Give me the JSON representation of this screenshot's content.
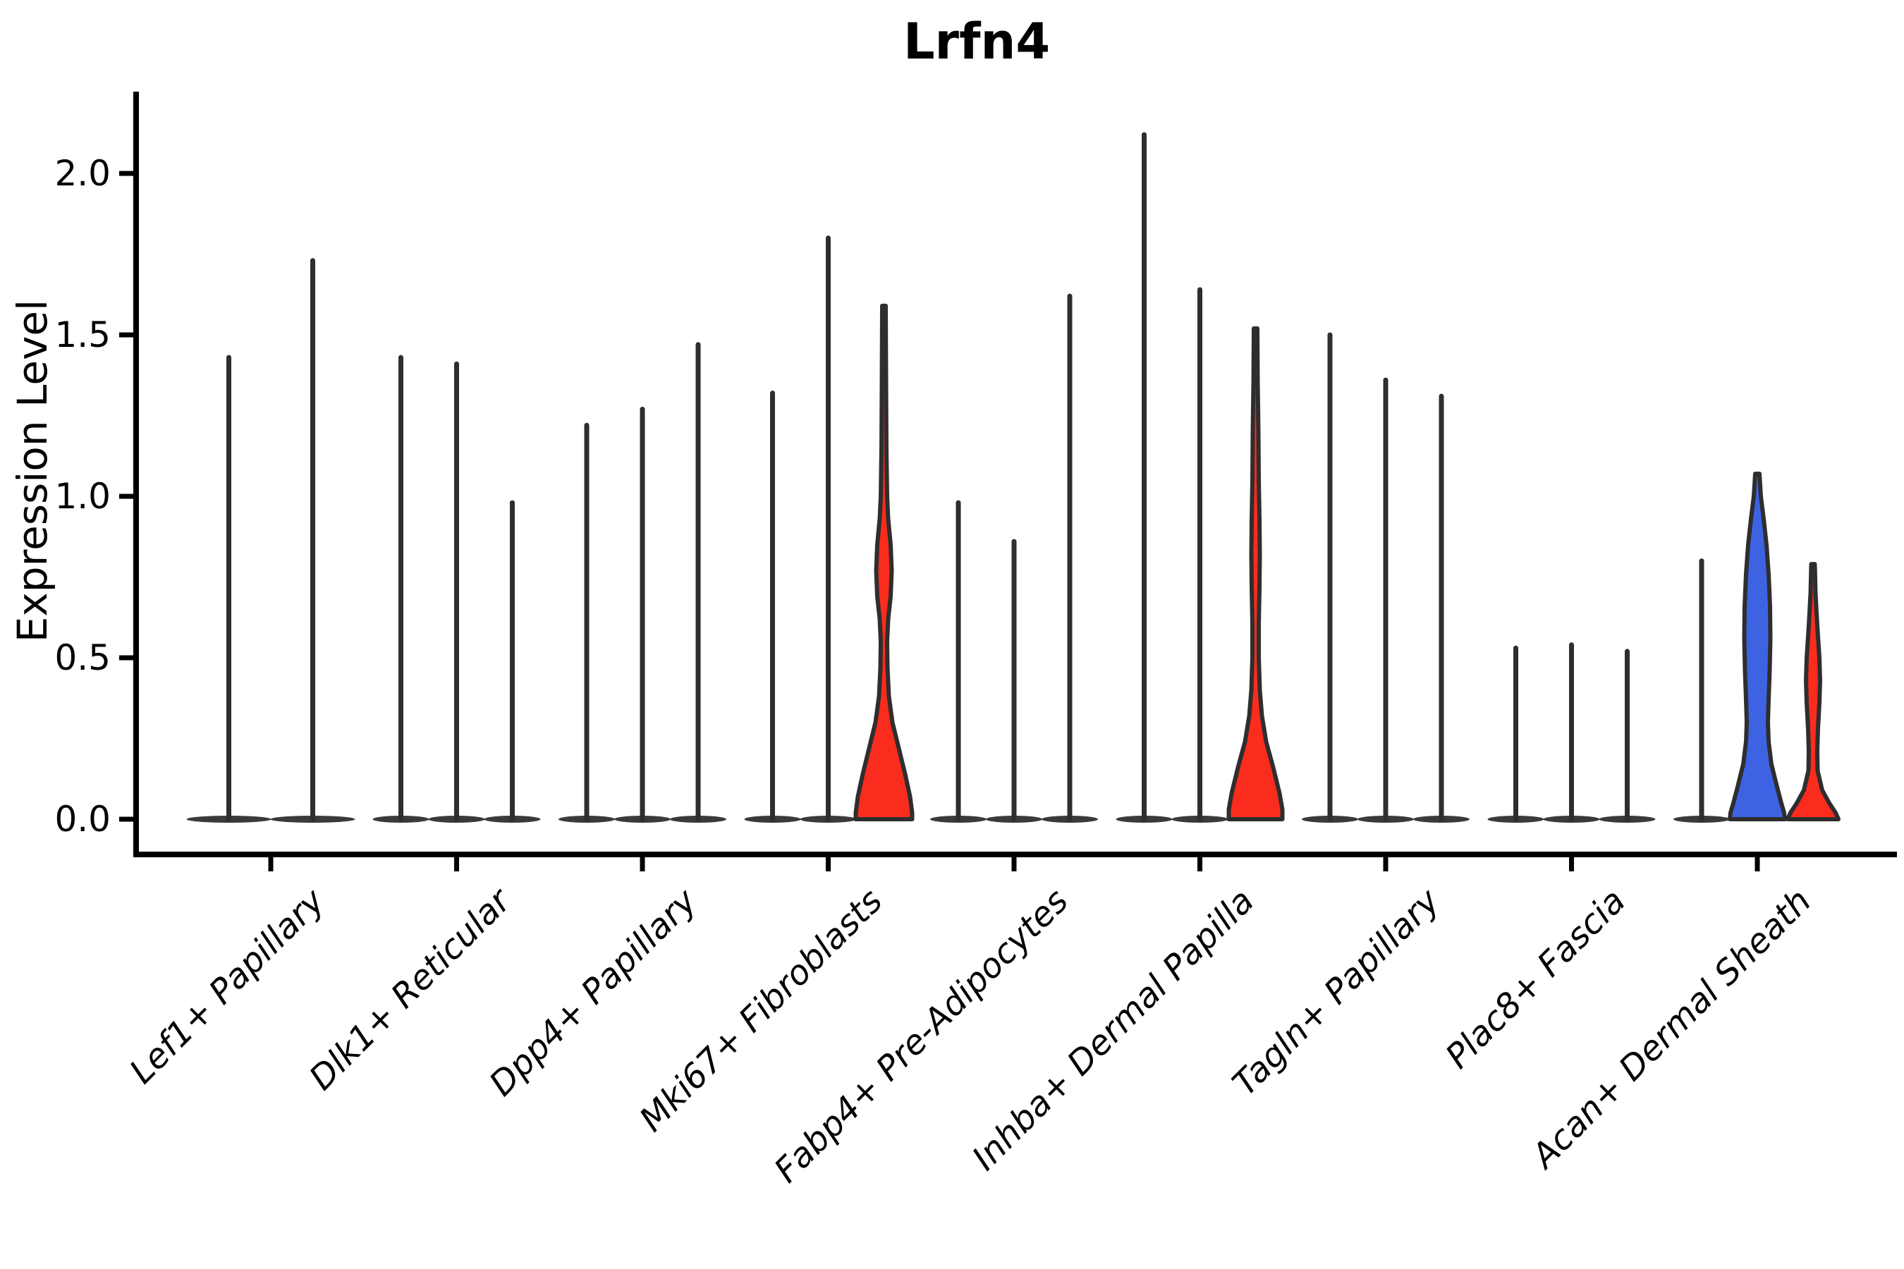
{
  "chart_data": {
    "type": "violin",
    "title": "Lrfn4",
    "ylabel": "Expression Level",
    "xlabel": "",
    "ylim": [
      -0.1,
      2.25
    ],
    "yticks": [
      0.0,
      0.5,
      1.0,
      1.5,
      2.0
    ],
    "ytick_labels": [
      "0.0",
      "0.5",
      "1.0",
      "1.5",
      "2.0"
    ],
    "grid": false,
    "legend": "none",
    "categories": [
      "Lef1+ Papillary",
      "Dlk1+ Reticular",
      "Dpp4+ Papillary",
      "Mki67+ Fibroblasts",
      "Fabp4+ Pre-Adipocytes",
      "Inhba+ Dermal Papilla",
      "Tagln+ Papillary",
      "Plac8+ Fascia",
      "Acan+ Dermal Sheath"
    ],
    "groups": [
      {
        "category": "Lef1+ Papillary",
        "violins": [
          {
            "kind": "spike",
            "value": 1.43
          },
          {
            "kind": "spike",
            "value": 1.73
          }
        ]
      },
      {
        "category": "Dlk1+ Reticular",
        "violins": [
          {
            "kind": "spike",
            "value": 1.43
          },
          {
            "kind": "spike",
            "value": 1.41
          },
          {
            "kind": "spike",
            "value": 0.98
          }
        ]
      },
      {
        "category": "Dpp4+ Papillary",
        "violins": [
          {
            "kind": "spike",
            "value": 1.22
          },
          {
            "kind": "spike",
            "value": 1.27
          },
          {
            "kind": "spike",
            "value": 1.47
          }
        ]
      },
      {
        "category": "Mki67+ Fibroblasts",
        "violins": [
          {
            "kind": "spike",
            "value": 1.32
          },
          {
            "kind": "spike",
            "value": 1.8
          },
          {
            "kind": "shaped",
            "value": 1.59,
            "fill": "red",
            "profile": [
              [
                1.59,
                2.5
              ],
              [
                1.35,
                3
              ],
              [
                1.15,
                3.5
              ],
              [
                1.0,
                4.5
              ],
              [
                0.93,
                6
              ],
              [
                0.85,
                9.5
              ],
              [
                0.77,
                11
              ],
              [
                0.69,
                9.5
              ],
              [
                0.62,
                6
              ],
              [
                0.55,
                4.5
              ],
              [
                0.47,
                5
              ],
              [
                0.38,
                7
              ],
              [
                0.3,
                12
              ],
              [
                0.22,
                21
              ],
              [
                0.14,
                30
              ],
              [
                0.07,
                37
              ],
              [
                0.02,
                40
              ],
              [
                0,
                40
              ]
            ]
          }
        ]
      },
      {
        "category": "Fabp4+ Pre-Adipocytes",
        "violins": [
          {
            "kind": "spike",
            "value": 0.98
          },
          {
            "kind": "spike",
            "value": 0.86
          },
          {
            "kind": "spike",
            "value": 1.62
          }
        ]
      },
      {
        "category": "Inhba+ Dermal Papilla",
        "violins": [
          {
            "kind": "spike",
            "value": 2.12
          },
          {
            "kind": "spike",
            "value": 1.64
          },
          {
            "kind": "shaped",
            "value": 1.52,
            "fill": "red",
            "profile": [
              [
                1.52,
                2.5
              ],
              [
                1.35,
                3
              ],
              [
                1.2,
                4
              ],
              [
                1.05,
                4.5
              ],
              [
                0.93,
                5.5
              ],
              [
                0.82,
                6
              ],
              [
                0.72,
                5.5
              ],
              [
                0.6,
                4.5
              ],
              [
                0.5,
                4.5
              ],
              [
                0.4,
                6
              ],
              [
                0.32,
                9
              ],
              [
                0.24,
                15
              ],
              [
                0.16,
                25
              ],
              [
                0.08,
                34
              ],
              [
                0.03,
                38
              ],
              [
                0,
                38
              ]
            ]
          }
        ]
      },
      {
        "category": "Tagln+ Papillary",
        "violins": [
          {
            "kind": "spike",
            "value": 1.5
          },
          {
            "kind": "spike",
            "value": 1.36
          },
          {
            "kind": "spike",
            "value": 1.31
          }
        ]
      },
      {
        "category": "Plac8+ Fascia",
        "violins": [
          {
            "kind": "spike",
            "value": 0.53
          },
          {
            "kind": "spike",
            "value": 0.54
          },
          {
            "kind": "spike",
            "value": 0.52
          }
        ]
      },
      {
        "category": "Acan+ Dermal Sheath",
        "violins": [
          {
            "kind": "spike",
            "value": 0.8
          },
          {
            "kind": "shaped",
            "value": 1.07,
            "fill": "blue",
            "profile": [
              [
                1.07,
                3
              ],
              [
                1.0,
                5
              ],
              [
                0.93,
                9
              ],
              [
                0.85,
                13
              ],
              [
                0.76,
                16
              ],
              [
                0.66,
                18
              ],
              [
                0.56,
                18.5
              ],
              [
                0.46,
                17.5
              ],
              [
                0.37,
                16
              ],
              [
                0.3,
                15
              ],
              [
                0.24,
                16
              ],
              [
                0.17,
                20
              ],
              [
                0.1,
                28
              ],
              [
                0.05,
                34
              ],
              [
                0.02,
                38
              ],
              [
                0,
                39
              ]
            ]
          },
          {
            "kind": "shaped",
            "value": 0.79,
            "fill": "red",
            "profile": [
              [
                0.79,
                2.5
              ],
              [
                0.7,
                3.5
              ],
              [
                0.6,
                6
              ],
              [
                0.5,
                9
              ],
              [
                0.43,
                10
              ],
              [
                0.36,
                9
              ],
              [
                0.28,
                7
              ],
              [
                0.21,
                6
              ],
              [
                0.15,
                6.5
              ],
              [
                0.09,
                13
              ],
              [
                0.05,
                23
              ],
              [
                0.02,
                32
              ],
              [
                0,
                36
              ]
            ]
          }
        ]
      }
    ],
    "colors": {
      "red": "#F92C1E",
      "blue": "#3D63E3",
      "violin_outline": "#2E2E2E",
      "flat_base": "#3A3A3A",
      "axis": "#000000",
      "background": "#FFFFFF"
    }
  }
}
